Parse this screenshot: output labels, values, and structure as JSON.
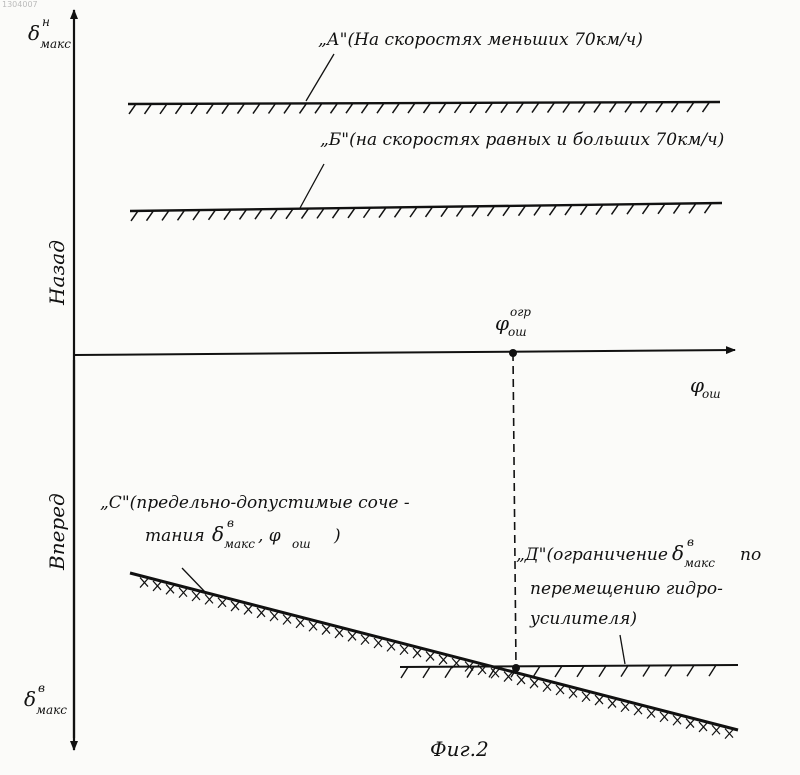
{
  "figure": {
    "caption": "Фиг.2",
    "watermark": "1304007"
  },
  "axes": {
    "y_top": {
      "sym": "δ",
      "sup": "н",
      "sub": "макс"
    },
    "y_bottom": {
      "sym": "δ",
      "sup": "в",
      "sub": "макс"
    },
    "x": {
      "sym": "φ",
      "sub": "ош"
    },
    "phi_limit": {
      "sym": "φ",
      "sup": "огр",
      "sub": "ош"
    },
    "label_back": "Назад",
    "label_forward": "Вперед"
  },
  "annotations": {
    "a": "„А\"(На скоростях меньших 70км/ч)",
    "b": "„Б\"(на скоростях равных и больших 70км/ч)",
    "c_line1": "„С\"(предельно-допустимые соче -",
    "c_line2_a": "тания",
    "c_line2_sym": "δ",
    "c_line2_sup": "в",
    "c_line2_sub": "макс",
    "c_line2_b": ", φ",
    "c_line2_sub2": "ош",
    "c_line2_c": ")",
    "d_line1_a": "„Д\"(ограничение",
    "d_line1_sym": "δ",
    "d_line1_sup": "в",
    "d_line1_sub": "макс",
    "d_line1_b": "по",
    "d_line2": "перемещению гидро-",
    "d_line3": "усилителя)"
  }
}
